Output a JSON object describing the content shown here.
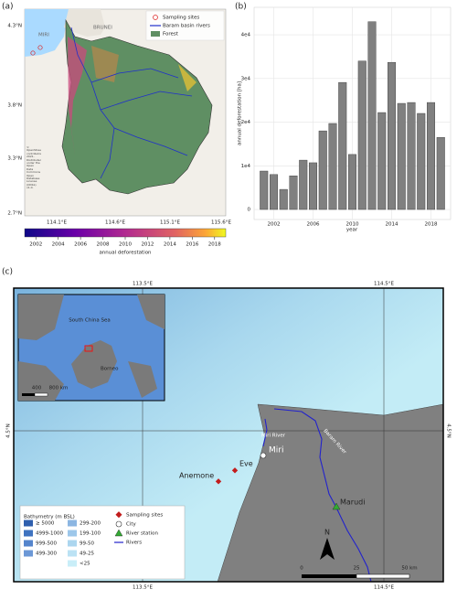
{
  "panel_a": {
    "label": "(a)",
    "legend": [
      "Sampling sites",
      "Baram basin rivers",
      "Forest"
    ],
    "places": [
      "MIRI",
      "BRUNEI"
    ],
    "attribution": "© OpenStreetMap contributors 2021. Distributed under the Open Data Commons Open Database License (ODbL) v1.0.",
    "lat_labels": [
      "4.3°N",
      "3.8°N",
      "3.3°N",
      "2.7°N"
    ],
    "lon_labels": [
      "114.1°E",
      "114.6°E",
      "115.1°E",
      "115.6°E"
    ],
    "colorbar": {
      "label": "annual deforestation",
      "lim": [
        2001,
        2019
      ],
      "ticks": [
        2002,
        2004,
        2006,
        2008,
        2010,
        2012,
        2014,
        2016,
        2018
      ]
    }
  },
  "chart_data": {
    "type": "bar",
    "panel_label": "(b)",
    "xlabel": "year",
    "ylabel": "annual deforestation [ha]",
    "x": [
      2001,
      2002,
      2003,
      2004,
      2005,
      2006,
      2007,
      2008,
      2009,
      2010,
      2011,
      2012,
      2013,
      2014,
      2015,
      2016,
      2017,
      2018,
      2019
    ],
    "values": [
      8800,
      8000,
      4600,
      7700,
      11300,
      10700,
      18000,
      19700,
      29100,
      12600,
      34000,
      43000,
      22200,
      33700,
      24300,
      24500,
      22000,
      24500,
      16500
    ],
    "color": "#808080",
    "xlim": [
      2000,
      2020
    ],
    "xticks": [
      2002,
      2006,
      2010,
      2014,
      2018
    ],
    "ylim": [
      -2300,
      46300
    ],
    "yticks": [
      0,
      {
        "value": 10000,
        "label": "1e4"
      },
      {
        "value": 20000,
        "label": "2e4"
      },
      {
        "value": 30000,
        "label": "3e4"
      },
      {
        "value": 40000,
        "label": "4e4"
      }
    ],
    "grid": true
  },
  "panel_c": {
    "label": "(c)",
    "lon_labels": [
      "113.5°E",
      "114.5°E"
    ],
    "lat_label": "4.5°N",
    "inset": {
      "sea": "South China Sea",
      "land": "Borneo",
      "scale": [
        "400",
        "800 km"
      ]
    },
    "places": {
      "river1": "Miri River",
      "river2": "Baram River",
      "city": "Miri",
      "site1": "Eve",
      "site2": "Anemone",
      "station": "Marudi"
    },
    "scale": [
      "0",
      "25",
      "50 km"
    ],
    "north": "N",
    "bathymetry": {
      "title": "Bathymetry (m BSL)",
      "items": [
        "≥ 5000",
        "4999-1000",
        "999-500",
        "499-300",
        "299-200",
        "199-100",
        "99-50",
        "49-25",
        "<25"
      ]
    },
    "legend": [
      "Sampling sites",
      "City",
      "River station",
      "Rivers"
    ]
  }
}
